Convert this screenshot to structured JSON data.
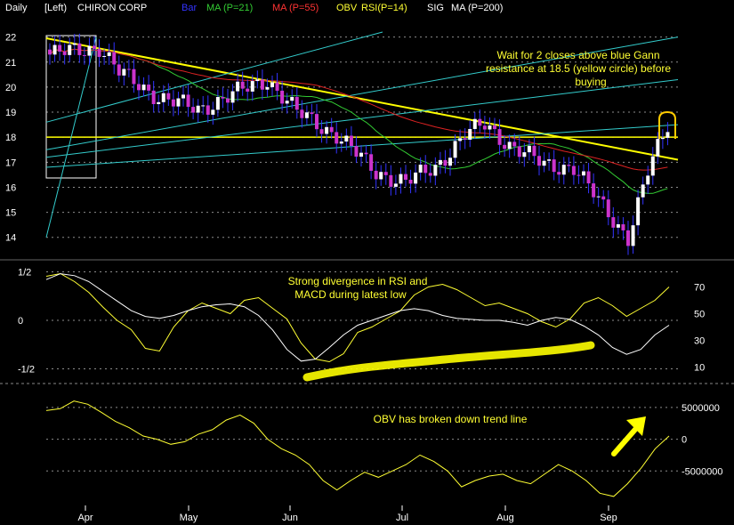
{
  "header": {
    "period": "Daily",
    "axis_side": "[Left)",
    "symbol": "CHIRON CORP",
    "bar_label": "Bar",
    "ma1_label": "MA (P=21)",
    "ma2_label": "MA (P=55)",
    "obv_label": "OBV",
    "rsi_label": "RSI(P=14)",
    "sig_label": "SIG",
    "ma200_label": "MA (P=200)"
  },
  "colors": {
    "background": "#000000",
    "bar": "#3333ff",
    "ma21": "#33cc33",
    "ma55": "#dd2222",
    "gann_yellow": "#ffff00",
    "gann_blue": "#33cccc",
    "candle_up": "#ffffff",
    "candle_down": "#cc33cc",
    "grid": "#ffffff",
    "rsi_line": "#ffff33",
    "macd_line": "#ffffff",
    "obv_line": "#ffff33",
    "annotation": "#ffff33"
  },
  "annotations": {
    "price_note": [
      "Wait for 2 closes above blue Gann",
      "resistance at 18.5 (yellow circle) before",
      "buying"
    ],
    "rsi_note": [
      "Strong divergence in RSI and",
      "MACD during latest low"
    ],
    "obv_note": "OBV has broken down trend line"
  },
  "chart_data": [
    {
      "type": "candlestick",
      "title": "CHIRON CORP",
      "x_labels": [
        "Apr",
        "May",
        "Jun",
        "Jul",
        "Aug",
        "Sep"
      ],
      "y_ticks": [
        "22",
        "21",
        "20",
        "19",
        "18",
        "17",
        "16",
        "15",
        "14"
      ],
      "ylim": [
        13.6,
        22.2
      ],
      "grid": true,
      "n_sessions": 126,
      "ohlc_anchors": [
        {
          "i": 0,
          "close": 21.3
        },
        {
          "i": 10,
          "close": 21.6
        },
        {
          "i": 14,
          "close": 20.6
        },
        {
          "i": 22,
          "close": 19.6
        },
        {
          "i": 30,
          "close": 19.1
        },
        {
          "i": 38,
          "close": 19.8
        },
        {
          "i": 44,
          "close": 20.3
        },
        {
          "i": 50,
          "close": 19.0
        },
        {
          "i": 58,
          "close": 18.1
        },
        {
          "i": 66,
          "close": 16.6
        },
        {
          "i": 72,
          "close": 16.2
        },
        {
          "i": 78,
          "close": 16.8
        },
        {
          "i": 84,
          "close": 18.1
        },
        {
          "i": 88,
          "close": 18.5
        },
        {
          "i": 93,
          "close": 17.7
        },
        {
          "i": 100,
          "close": 16.9
        },
        {
          "i": 106,
          "close": 16.8
        },
        {
          "i": 112,
          "close": 15.2
        },
        {
          "i": 117,
          "close": 14.0
        },
        {
          "i": 121,
          "close": 16.6
        },
        {
          "i": 125,
          "close": 18.5
        }
      ],
      "series": [
        {
          "name": "MA (P=21)"
        },
        {
          "name": "MA (P=55)"
        }
      ],
      "gann_resistance": 18.5
    },
    {
      "type": "line",
      "y_ticks_left": [
        "1/2",
        "0",
        "-1/2"
      ],
      "y_ticks_right": [
        "70",
        "50",
        "30",
        "10"
      ],
      "series": [
        {
          "name": "RSI(P=14)",
          "values": [
            78,
            80,
            74,
            66,
            55,
            45,
            38,
            24,
            22,
            40,
            52,
            58,
            54,
            50,
            60,
            62,
            54,
            46,
            28,
            16,
            14,
            20,
            36,
            40,
            46,
            52,
            64,
            70,
            72,
            68,
            62,
            56,
            58,
            54,
            50,
            44,
            40,
            46,
            58,
            62,
            56,
            48,
            54,
            60,
            70
          ]
        },
        {
          "name": "MACD",
          "values": [
            0.42,
            0.48,
            0.46,
            0.4,
            0.3,
            0.2,
            0.1,
            0.04,
            0.02,
            0.05,
            0.1,
            0.14,
            0.16,
            0.17,
            0.14,
            0.05,
            -0.1,
            -0.3,
            -0.42,
            -0.4,
            -0.28,
            -0.15,
            -0.05,
            0.0,
            0.05,
            0.1,
            0.12,
            0.1,
            0.05,
            0.02,
            0.01,
            0.0,
            0.0,
            -0.02,
            -0.05,
            0.0,
            0.03,
            0.01,
            -0.06,
            -0.15,
            -0.28,
            -0.35,
            -0.3,
            -0.15,
            -0.05
          ]
        }
      ]
    },
    {
      "type": "line",
      "y_ticks_right": [
        "5000000",
        "0",
        "-5000000"
      ],
      "series": [
        {
          "name": "OBV",
          "values": [
            4.5,
            4.8,
            6.0,
            5.5,
            4.2,
            2.8,
            1.8,
            0.5,
            0.0,
            -0.8,
            -0.4,
            0.8,
            1.5,
            3.0,
            3.8,
            2.5,
            0.0,
            -1.5,
            -2.5,
            -4.0,
            -6.5,
            -8.0,
            -6.5,
            -5.2,
            -6.0,
            -5.0,
            -4.0,
            -2.5,
            -3.5,
            -5.0,
            -7.5,
            -6.5,
            -5.8,
            -5.5,
            -6.5,
            -7.0,
            -5.5,
            -4.0,
            -5.0,
            -6.5,
            -8.5,
            -9.0,
            -7.0,
            -4.5,
            -1.5,
            0.5
          ]
        }
      ]
    }
  ]
}
